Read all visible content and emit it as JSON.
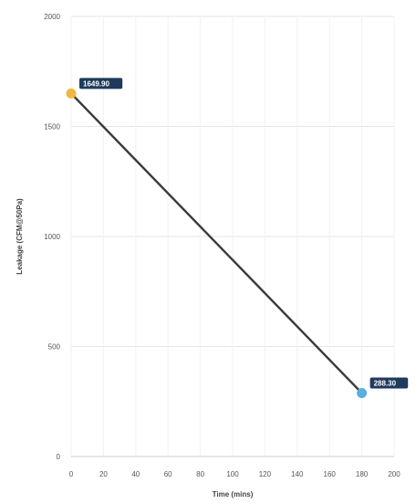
{
  "chart_data": {
    "type": "line",
    "title": "",
    "xlabel": "Time (mins)",
    "ylabel": "Leakage (CFM@50Pa)",
    "xlim": [
      0,
      200
    ],
    "ylim": [
      0,
      2000
    ],
    "x_ticks": [
      0,
      20,
      40,
      60,
      80,
      100,
      120,
      140,
      160,
      180,
      200
    ],
    "y_ticks": [
      0,
      500,
      1000,
      1500,
      2000
    ],
    "grid": true,
    "legend": "none",
    "series": [
      {
        "points": [
          {
            "x": 0,
            "y": 1649.9,
            "label": "1649.90",
            "color": "#f0b840"
          },
          {
            "x": 180,
            "y": 288.3,
            "label": "288.30",
            "color": "#5aaee0"
          }
        ],
        "line_color": "#3a3a3a"
      }
    ],
    "colors": {
      "label_bg": "#1f3a5c",
      "grid": "#e6e6e6",
      "axis": "#cccccc"
    }
  }
}
